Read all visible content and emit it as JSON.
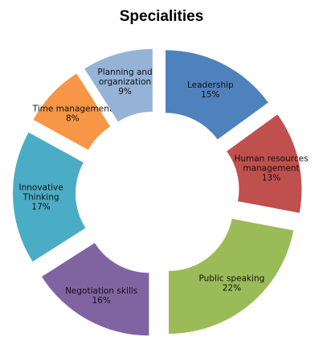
{
  "chart_data": {
    "type": "pie",
    "title": "Specialities",
    "categories": [
      "Leadership",
      "Human resources management",
      "Public speaking",
      "Negotiation skills",
      "Innovative Thinking",
      "Time management",
      "Planning and organization"
    ],
    "series": [
      {
        "values": [
          15,
          13,
          22,
          16,
          17,
          8,
          9
        ]
      }
    ],
    "labels": [
      {
        "lines": [
          "Leadership"
        ],
        "value": "15%"
      },
      {
        "lines": [
          "Human resources",
          "management"
        ],
        "value": "13%"
      },
      {
        "lines": [
          "Public speaking"
        ],
        "value": "22%"
      },
      {
        "lines": [
          "Negotiation skills"
        ],
        "value": "16%"
      },
      {
        "lines": [
          "Innovative",
          "Thinking"
        ],
        "value": "17%"
      },
      {
        "lines": [
          "Time management"
        ],
        "value": "8%"
      },
      {
        "lines": [
          "Planning and",
          "organization"
        ],
        "value": "9%"
      }
    ],
    "colors": [
      "#4F81BD",
      "#C0504D",
      "#9BBB59",
      "#8064A2",
      "#4BACC6",
      "#F79646",
      "#95B3D7"
    ],
    "legend": "none",
    "grid": false
  }
}
